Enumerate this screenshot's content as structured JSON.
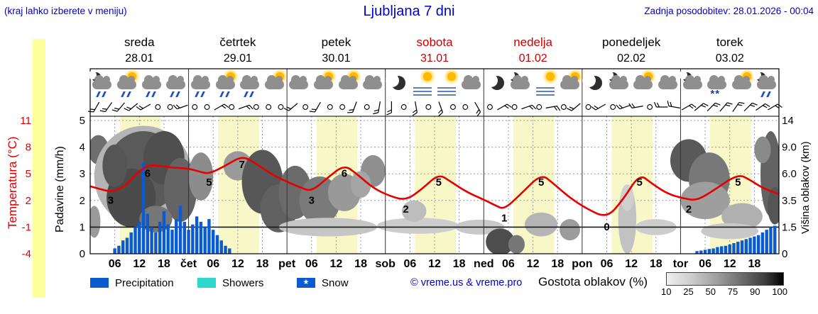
{
  "header": {
    "menu_hint": "(kraj lahko izberete v meniju)",
    "title": "Ljubljana 7 dni",
    "last_update": "Zadnja posodobitev: 28.01.2026 - 00:04",
    "text_color": "#0000cc"
  },
  "days": [
    {
      "name": "sreda",
      "date": "28.01",
      "color": "#000000"
    },
    {
      "name": "četrtek",
      "date": "29.01",
      "color": "#000000"
    },
    {
      "name": "petek",
      "date": "30.01",
      "color": "#000000"
    },
    {
      "name": "sobota",
      "date": "31.01",
      "color": "#cc0000"
    },
    {
      "name": "nedelja",
      "date": "01.02",
      "color": "#cc0000"
    },
    {
      "name": "ponedeljek",
      "date": "02.02",
      "color": "#000000"
    },
    {
      "name": "torek",
      "date": "03.02",
      "color": "#000000"
    }
  ],
  "axes": {
    "temperature": {
      "label": "Temperatura (°C)",
      "ticks": [
        "11",
        "8",
        "5",
        "2",
        "-1",
        "-4"
      ],
      "color": "#dd0000"
    },
    "precipitation": {
      "label": "Padavine (mm/h)",
      "ticks": [
        "5",
        "4",
        "3",
        "2",
        "1",
        "0"
      ]
    },
    "cloud_height": {
      "label": "Višina oblakov (km)",
      "ticks": [
        "14",
        "9.0",
        "6.0",
        "3.5",
        "1.5",
        "0"
      ]
    },
    "time_ticks": [
      "06",
      "12",
      "18"
    ],
    "day_abbr": [
      "čet",
      "pet",
      "sob",
      "ned",
      "pon",
      "tor"
    ]
  },
  "legend": {
    "precipitation": "Precipitation",
    "showers": "Showers",
    "snow": "Snow",
    "credit": "© vreme.us & vreme.pro",
    "cloud_density": "Gostota oblakov (%)",
    "cloud_scale": [
      "10",
      "25",
      "50",
      "75",
      "90",
      "100"
    ],
    "colors": {
      "precipitation": "#0a5ad2",
      "showers": "#2fd8cc",
      "snow": "#0a5ad2"
    }
  },
  "chart_data": {
    "type": "line",
    "x_range_hours": [
      0,
      168
    ],
    "daylight": {
      "start_hour": 7.2,
      "end_hour": 17.2,
      "band_color": "#f7f7c8"
    },
    "temperature": {
      "name": "Temperatura (°C)",
      "color": "#e60000",
      "y_range": [
        -4,
        11
      ],
      "points": [
        [
          0,
          3.6
        ],
        [
          3,
          3.2
        ],
        [
          5,
          3.0
        ],
        [
          8,
          3.4
        ],
        [
          11,
          4.9
        ],
        [
          14,
          6.0
        ],
        [
          17,
          5.9
        ],
        [
          20,
          5.7
        ],
        [
          24,
          5.6
        ],
        [
          27,
          5.2
        ],
        [
          29,
          5.0
        ],
        [
          33,
          5.9
        ],
        [
          37,
          7.0
        ],
        [
          40,
          6.3
        ],
        [
          44,
          5.0
        ],
        [
          48,
          4.1
        ],
        [
          51,
          3.5
        ],
        [
          54,
          3.0
        ],
        [
          58,
          4.6
        ],
        [
          62,
          6.0
        ],
        [
          65,
          5.0
        ],
        [
          69,
          3.4
        ],
        [
          73,
          2.5
        ],
        [
          77,
          2.0
        ],
        [
          81,
          3.3
        ],
        [
          85,
          5.0
        ],
        [
          88,
          4.1
        ],
        [
          92,
          2.9
        ],
        [
          96,
          2.1
        ],
        [
          99,
          1.4
        ],
        [
          101,
          1.0
        ],
        [
          105,
          2.7
        ],
        [
          110,
          5.0
        ],
        [
          113,
          3.9
        ],
        [
          117,
          2.3
        ],
        [
          121,
          1.1
        ],
        [
          126,
          0.0
        ],
        [
          130,
          2.1
        ],
        [
          134,
          5.0
        ],
        [
          137,
          3.9
        ],
        [
          141,
          2.7
        ],
        [
          145,
          2.2
        ],
        [
          148,
          2.0
        ],
        [
          152,
          3.1
        ],
        [
          158,
          5.0
        ],
        [
          161,
          4.3
        ],
        [
          164,
          3.4
        ],
        [
          168,
          2.7
        ]
      ],
      "extrema_labels": [
        {
          "t": 5,
          "value": 3
        },
        {
          "t": 14,
          "value": 6
        },
        {
          "t": 29,
          "value": 5
        },
        {
          "t": 37,
          "value": 7
        },
        {
          "t": 54,
          "value": 3
        },
        {
          "t": 62,
          "value": 6
        },
        {
          "t": 77,
          "value": 2
        },
        {
          "t": 85,
          "value": 5
        },
        {
          "t": 101,
          "value": 1
        },
        {
          "t": 110,
          "value": 5
        },
        {
          "t": 126,
          "value": 0
        },
        {
          "t": 134,
          "value": 5
        },
        {
          "t": 146,
          "value": 2
        },
        {
          "t": 158,
          "value": 5
        }
      ]
    },
    "precipitation": {
      "name": "Padavine (mm/h)",
      "color": "#0a5ad2",
      "y_range": [
        0,
        5
      ],
      "bars": [
        [
          6,
          0.2
        ],
        [
          7,
          0.3
        ],
        [
          8,
          0.5
        ],
        [
          9,
          0.6
        ],
        [
          10,
          0.8
        ],
        [
          11,
          1.0
        ],
        [
          12,
          1.2
        ],
        [
          13,
          3.4
        ],
        [
          14,
          1.5
        ],
        [
          15,
          1.0
        ],
        [
          16,
          0.8
        ],
        [
          17,
          1.2
        ],
        [
          18,
          1.6
        ],
        [
          19,
          1.1
        ],
        [
          20,
          0.9
        ],
        [
          21,
          1.3
        ],
        [
          22,
          1.8
        ],
        [
          23,
          1.2
        ],
        [
          24,
          0.9
        ],
        [
          25,
          1.1
        ],
        [
          26,
          1.4
        ],
        [
          27,
          1.2
        ],
        [
          28,
          1.0
        ],
        [
          29,
          1.3
        ],
        [
          30,
          0.9
        ],
        [
          31,
          0.7
        ],
        [
          32,
          0.5
        ],
        [
          33,
          0.3
        ],
        [
          34,
          0.2
        ],
        [
          148,
          0.1
        ],
        [
          149,
          0.12
        ],
        [
          150,
          0.15
        ],
        [
          151,
          0.18
        ],
        [
          152,
          0.2
        ],
        [
          153,
          0.25
        ],
        [
          154,
          0.28
        ],
        [
          155,
          0.3
        ],
        [
          156,
          0.35
        ],
        [
          157,
          0.4
        ],
        [
          158,
          0.45
        ],
        [
          159,
          0.5
        ],
        [
          160,
          0.55
        ],
        [
          161,
          0.6
        ],
        [
          162,
          0.65
        ],
        [
          163,
          0.7
        ],
        [
          164,
          0.8
        ],
        [
          165,
          0.9
        ],
        [
          166,
          1.0
        ],
        [
          167,
          1.05
        ]
      ]
    },
    "clouds": {
      "name": "Gostota oblakov (%)",
      "blobs": [
        {
          "t": 2,
          "v": 3.9,
          "rt": 2.5,
          "rv": 0.55,
          "gray": "#6e6e6e"
        },
        {
          "t": 1,
          "v": 1.2,
          "rt": 1.5,
          "rv": 0.6,
          "gray": "#9a9a9a"
        },
        {
          "t": 13,
          "v": 2.9,
          "rt": 12,
          "rv": 1.9,
          "gray": "#b4b4b4"
        },
        {
          "t": 13,
          "v": 3.1,
          "rt": 9,
          "rv": 1.5,
          "gray": "#5a5a5a"
        },
        {
          "t": 10,
          "v": 2.1,
          "rt": 6,
          "rv": 1.1,
          "gray": "#4b4b4b"
        },
        {
          "t": 18,
          "v": 3.6,
          "rt": 5,
          "rv": 1.0,
          "gray": "#4f4f4f"
        },
        {
          "t": 22,
          "v": 2.4,
          "rt": 4,
          "rv": 1.2,
          "gray": "#646464"
        },
        {
          "t": 6,
          "v": 3.3,
          "rt": 3,
          "rv": 0.8,
          "gray": "#555555"
        },
        {
          "t": 16,
          "v": 1.3,
          "rt": 4,
          "rv": 0.5,
          "gray": "#777777"
        },
        {
          "t": 27,
          "v": 2.9,
          "rt": 3,
          "rv": 0.9,
          "gray": "#8c8c8c"
        },
        {
          "t": 36,
          "v": 3.3,
          "rt": 3.5,
          "rv": 0.55,
          "gray": "#9a9a9a"
        },
        {
          "t": 42,
          "v": 2.7,
          "rt": 5,
          "rv": 1.2,
          "gray": "#575757"
        },
        {
          "t": 46,
          "v": 1.7,
          "rt": 4.5,
          "rv": 0.9,
          "gray": "#616161"
        },
        {
          "t": 50,
          "v": 2.3,
          "rt": 4,
          "rv": 1.0,
          "gray": "#6b6b6b"
        },
        {
          "t": 56,
          "v": 2.0,
          "rt": 5,
          "rv": 0.9,
          "gray": "#7a7a7a"
        },
        {
          "t": 62,
          "v": 2.3,
          "rt": 4,
          "rv": 0.7,
          "gray": "#999999"
        },
        {
          "t": 69,
          "v": 3.1,
          "rt": 3,
          "rv": 0.6,
          "gray": "#8f8f8f"
        },
        {
          "t": 66,
          "v": 2.6,
          "rt": 2.5,
          "rv": 0.5,
          "gray": "#a5a5a5"
        },
        {
          "t": 58,
          "v": 1.0,
          "rt": 12,
          "rv": 0.35,
          "gray": "#c6c6c6"
        },
        {
          "t": 80,
          "v": 1.05,
          "rt": 10,
          "rv": 0.3,
          "gray": "#cdcdcd"
        },
        {
          "t": 95,
          "v": 1.0,
          "rt": 6,
          "rv": 0.28,
          "gray": "#c9c9c9"
        },
        {
          "t": 79,
          "v": 1.6,
          "rt": 3,
          "rv": 0.4,
          "gray": "#bdbdbd"
        },
        {
          "t": 100,
          "v": 0.45,
          "rt": 3.5,
          "rv": 0.5,
          "gray": "#4d4d4d"
        },
        {
          "t": 104,
          "v": 0.35,
          "rt": 2,
          "rv": 0.35,
          "gray": "#777777"
        },
        {
          "t": 110,
          "v": 1.1,
          "rt": 4,
          "rv": 0.45,
          "gray": "#b5b5b5"
        },
        {
          "t": 117,
          "v": 0.9,
          "rt": 2.5,
          "rv": 0.4,
          "gray": "#9c9c9c"
        },
        {
          "t": 131,
          "v": 1.3,
          "rt": 2.2,
          "rv": 1.3,
          "gray": "#c2c2c2"
        },
        {
          "t": 131,
          "v": 2.1,
          "rt": 1.6,
          "rv": 0.5,
          "gray": "#cfcfcf"
        },
        {
          "t": 138,
          "v": 1.0,
          "rt": 5,
          "rv": 0.3,
          "gray": "#cdcdcd"
        },
        {
          "t": 146,
          "v": 3.5,
          "rt": 4.5,
          "rv": 0.8,
          "gray": "#595959"
        },
        {
          "t": 151,
          "v": 2.8,
          "rt": 5,
          "rv": 1.0,
          "gray": "#787878"
        },
        {
          "t": 150,
          "v": 2.0,
          "rt": 6,
          "rv": 0.7,
          "gray": "#9e9e9e"
        },
        {
          "t": 159,
          "v": 1.4,
          "rt": 5,
          "rv": 0.5,
          "gray": "#b0b0b0"
        },
        {
          "t": 166,
          "v": 3.0,
          "rt": 2.5,
          "rv": 1.6,
          "gray": "#636363"
        },
        {
          "t": 167,
          "v": 1.8,
          "rt": 1.8,
          "rv": 0.7,
          "gray": "#555555"
        },
        {
          "t": 156,
          "v": 0.85,
          "rt": 7,
          "rv": 0.3,
          "gray": "#c8c8c8"
        },
        {
          "t": 164,
          "v": 3.9,
          "rt": 2,
          "rv": 0.5,
          "gray": "#8a8a8a"
        }
      ]
    },
    "weather_icons": [
      "moon-cloud-rain",
      "sun-cloud-rain",
      "cloud-rain",
      "cloud-rain",
      "cloud-rain",
      "sun-cloud-rain",
      "cloud-rain",
      "sun-cloud",
      "cloud",
      "sun-cloud",
      "sun-cloud",
      "cloud",
      "moon",
      "sun-fog",
      "sun-fog",
      "cloud",
      "moon",
      "moon-cloud",
      "sun-fog",
      "sun-cloud",
      "moon",
      "moon-cloud",
      "sun-cloud",
      "cloud",
      "moon-cloud",
      "cloud-snow",
      "sun-cloud",
      "moon-cloud-rain"
    ],
    "wind_barbs": [
      210,
      215,
      220,
      230,
      240,
      "calm",
      "calm",
      250,
      "calm",
      "calm",
      60,
      "calm",
      70,
      "calm",
      "calm",
      "calm",
      230,
      "calm",
      210,
      "calm",
      "calm",
      200,
      "calm",
      190,
      180,
      "calm",
      170,
      "calm",
      160,
      "calm",
      "calm",
      150,
      "calm",
      60,
      "calm",
      70,
      "calm",
      80,
      "calm",
      230,
      "calm",
      240,
      "calm",
      250,
      260,
      "calm",
      270,
      280,
      60,
      50,
      45,
      40,
      35,
      45,
      55,
      60
    ]
  }
}
